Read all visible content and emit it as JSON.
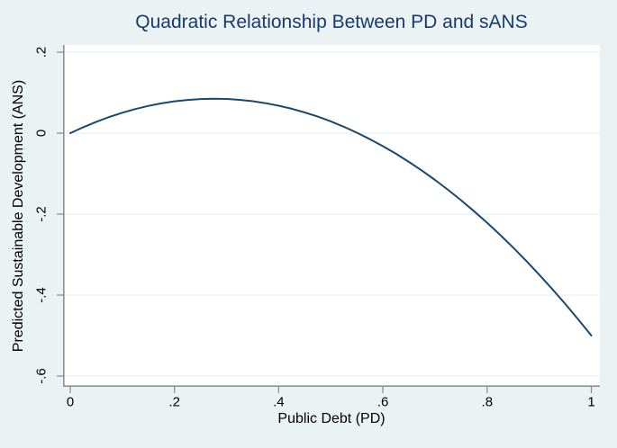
{
  "figure": {
    "background": "#EAF2F3",
    "plot_background": "#FFFFFF",
    "grid_color": "#E7EFF1",
    "axis_color": "#8A9296",
    "curve_color": "#1A476F",
    "title_color": "#1A3A6E",
    "text_color": "#000000"
  },
  "chart_data": {
    "type": "line",
    "title": "Quadratic Relationship Between PD and sANS",
    "xlabel": "Public Debt (PD)",
    "ylabel": "Predicted Sustainable Development (ANS)",
    "xlim": [
      -0.013,
      1.015
    ],
    "ylim": [
      -0.627,
      0.218
    ],
    "x_tick_values": [
      0,
      0.2,
      0.4,
      0.6,
      0.8,
      1
    ],
    "x_tick_labels": [
      "0",
      ".2",
      ".4",
      ".6",
      ".8",
      "1"
    ],
    "y_tick_values": [
      0.2,
      0,
      -0.2,
      -0.4,
      -0.6
    ],
    "y_tick_labels": [
      ".2",
      "0",
      "-.2",
      "-.4",
      "-.6"
    ],
    "grid": "horizontal",
    "legend": "none",
    "series": [
      {
        "name": "predicted-sans-quadratic-fit",
        "x": [
          0,
          0.025,
          0.05,
          0.075,
          0.1,
          0.125,
          0.15,
          0.175,
          0.2,
          0.225,
          0.25,
          0.275,
          0.3,
          0.325,
          0.35,
          0.375,
          0.4,
          0.425,
          0.45,
          0.475,
          0.5,
          0.525,
          0.55,
          0.575,
          0.6,
          0.625,
          0.65,
          0.675,
          0.7,
          0.725,
          0.75,
          0.775,
          0.8,
          0.825,
          0.85,
          0.875,
          0.9,
          0.925,
          0.95,
          0.975,
          1
        ],
        "y": [
          0,
          0.0147,
          0.028,
          0.0399,
          0.0504,
          0.0596,
          0.0673,
          0.0736,
          0.0786,
          0.0821,
          0.0843,
          0.085,
          0.0844,
          0.0823,
          0.0789,
          0.0741,
          0.0678,
          0.0602,
          0.0512,
          0.0408,
          0.029,
          0.0158,
          0.0012,
          -0.0148,
          -0.0322,
          -0.0509,
          -0.0711,
          -0.0927,
          -0.1156,
          -0.14,
          -0.1658,
          -0.1929,
          -0.2214,
          -0.2514,
          -0.2827,
          -0.3154,
          -0.3496,
          -0.3851,
          -0.422,
          -0.4603,
          -0.5
        ]
      }
    ]
  }
}
